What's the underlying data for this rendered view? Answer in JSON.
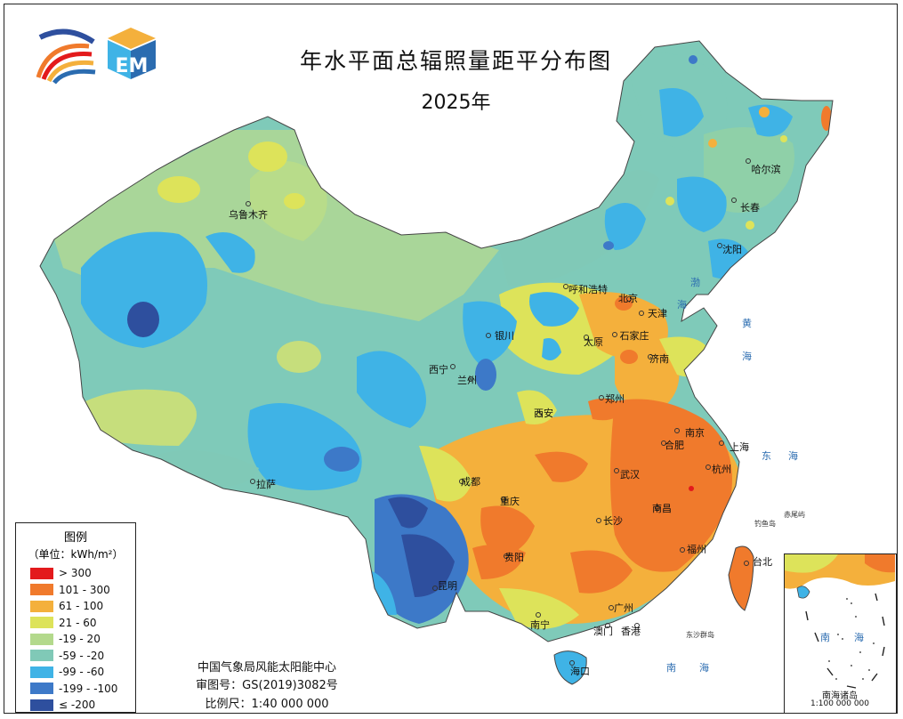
{
  "title": "年水平面总辐照量距平分布图",
  "year": "2025年",
  "logo": {
    "text": "EM"
  },
  "legend": {
    "title": "图例",
    "unit": "（单位：kWh/m²）",
    "items": [
      {
        "label": "> 300",
        "color": "#e31a1c"
      },
      {
        "label": "101 - 300",
        "color": "#f07a2c"
      },
      {
        "label": "61 - 100",
        "color": "#f4b03c"
      },
      {
        "label": "21 - 60",
        "color": "#dde35a"
      },
      {
        "label": "-19 - 20",
        "color": "#b3d98c"
      },
      {
        "label": "-59 - -20",
        "color": "#80c9b7"
      },
      {
        "label": "-99 - -60",
        "color": "#3fb3e6"
      },
      {
        "label": "-199 - -100",
        "color": "#3d79c8"
      },
      {
        "label": "≤ -200",
        "color": "#2e4f9e"
      }
    ]
  },
  "credits": {
    "org": "中国气象局风能太阳能中心",
    "approval": "审图号：GS(2019)3082号",
    "scale": "比例尺：1:40 000 000"
  },
  "cities": [
    "乌鲁木齐",
    "哈尔滨",
    "长春",
    "沈阳",
    "呼和浩特",
    "北京",
    "天津",
    "银川",
    "太原",
    "石家庄",
    "济南",
    "西宁",
    "兰州",
    "郑州",
    "西安",
    "南京",
    "合肥",
    "上海",
    "杭州",
    "成都",
    "重庆",
    "武汉",
    "拉萨",
    "长沙",
    "南昌",
    "贵阳",
    "昆明",
    "福州",
    "台北",
    "南宁",
    "广州",
    "澳门",
    "香港",
    "海口"
  ],
  "sea_labels": [
    "渤",
    "海",
    "黄",
    "海",
    "东",
    "海",
    "南",
    "海"
  ],
  "island_labels": [
    "钓鱼岛",
    "赤尾屿",
    "东沙群岛"
  ],
  "inset": {
    "sea_a": "南",
    "sea_b": "海",
    "title": "南海诸岛",
    "scale": "1:100 000 000"
  }
}
